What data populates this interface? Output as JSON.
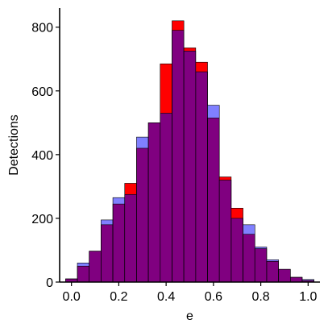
{
  "chart_data": {
    "type": "bar",
    "xlabel": "e",
    "ylabel": "Detections",
    "xlim": [
      -0.05,
      1.05
    ],
    "ylim": [
      0,
      860
    ],
    "x_ticks": [
      "0.0",
      "0.2",
      "0.4",
      "0.6",
      "0.8",
      "1.0"
    ],
    "x_tick_values": [
      0,
      0.2,
      0.4,
      0.6,
      0.8,
      1.0
    ],
    "y_ticks": [
      "0",
      "200",
      "400",
      "600",
      "800"
    ],
    "y_tick_values": [
      0,
      200,
      400,
      600,
      800
    ],
    "grid": false,
    "legend": "none",
    "bin_centers": [
      0.0,
      0.05,
      0.1,
      0.15,
      0.2,
      0.25,
      0.3,
      0.35,
      0.4,
      0.45,
      0.5,
      0.55,
      0.6,
      0.65,
      0.7,
      0.75,
      0.8,
      0.85,
      0.9,
      0.95,
      1.0
    ],
    "series": [
      {
        "color": "#ff0000",
        "values": [
          10,
          50,
          97,
          180,
          245,
          310,
          420,
          500,
          685,
          820,
          735,
          690,
          515,
          330,
          232,
          150,
          105,
          65,
          40,
          15,
          5
        ]
      },
      {
        "color": "#8080ff",
        "values": [
          10,
          60,
          97,
          195,
          265,
          275,
          455,
          500,
          530,
          790,
          725,
          660,
          555,
          320,
          200,
          180,
          110,
          70,
          40,
          15,
          8
        ]
      }
    ],
    "overlap_color": "#800080"
  }
}
